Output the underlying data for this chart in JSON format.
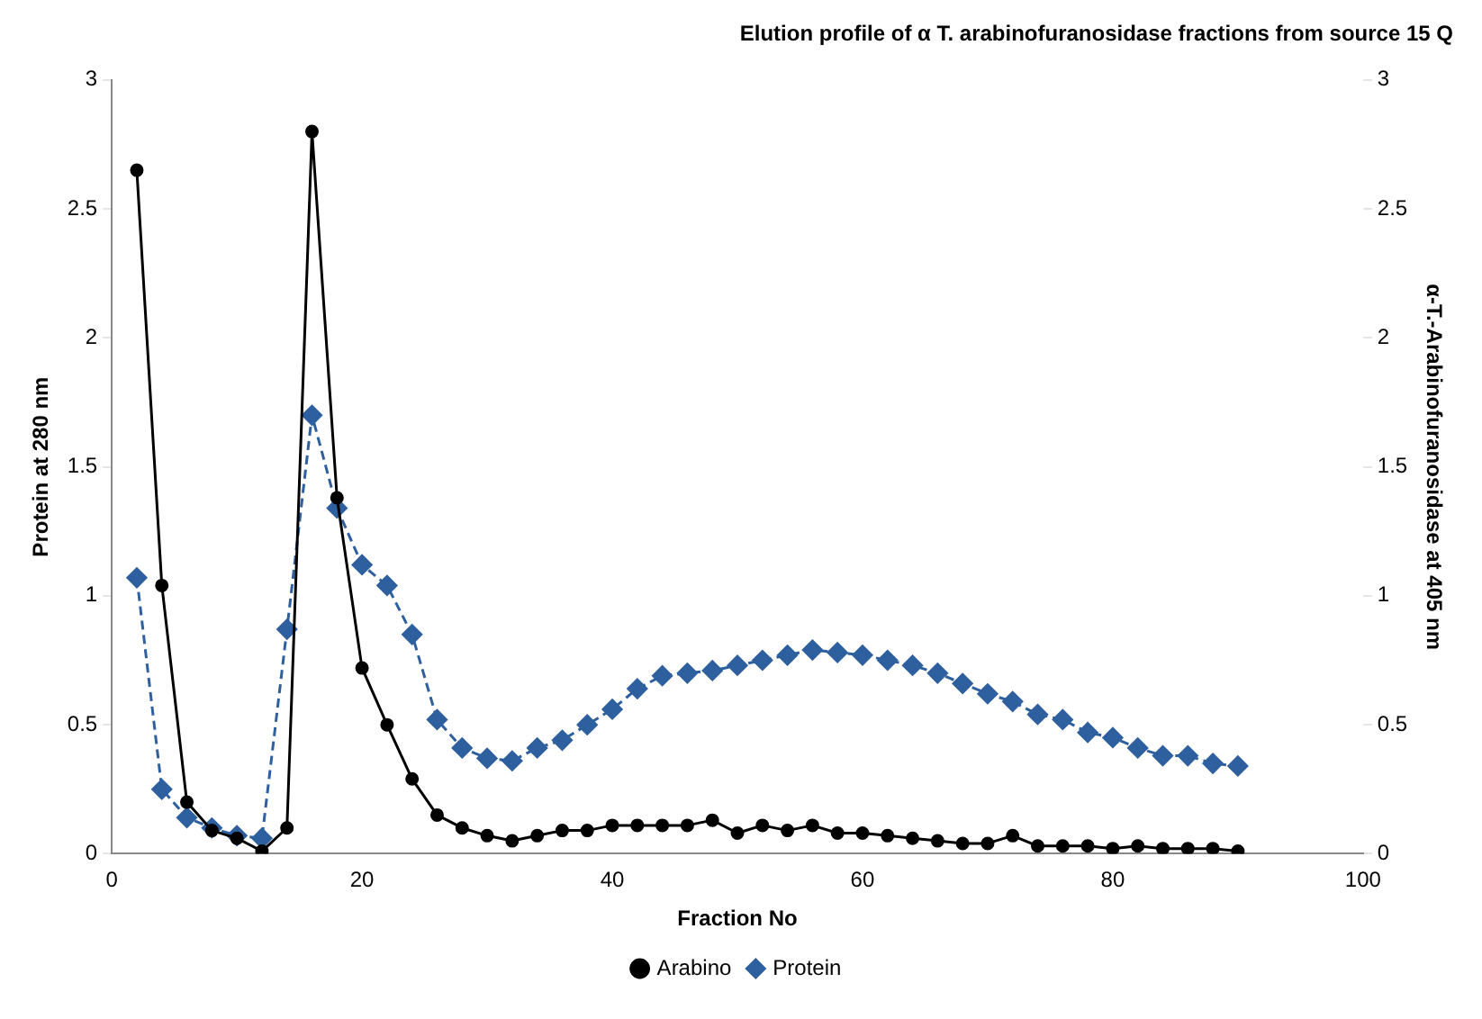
{
  "chart_data": {
    "type": "line",
    "title": "Elution profile of α T. arabinofuranosidase fractions from source 15 Q",
    "xlabel": "Fraction No",
    "ylabel": "Protein at 280 nm",
    "y2label": "α-T.-Arabinofuranosidase at 405 nm",
    "x": [
      2,
      4,
      6,
      8,
      10,
      12,
      14,
      16,
      18,
      20,
      22,
      24,
      26,
      28,
      30,
      32,
      34,
      36,
      38,
      40,
      42,
      44,
      46,
      48,
      50,
      52,
      54,
      56,
      58,
      60,
      62,
      64,
      66,
      68,
      70,
      72,
      74,
      76,
      78,
      80,
      82,
      84,
      86,
      88,
      90
    ],
    "xlim": [
      0,
      100
    ],
    "xticks": [
      0,
      20,
      40,
      60,
      80,
      100
    ],
    "ylim": [
      0,
      3
    ],
    "yticks": [
      0,
      0.5,
      1,
      1.5,
      2,
      2.5,
      3
    ],
    "y2lim": [
      0,
      3
    ],
    "y2ticks": [
      0,
      0.5,
      1,
      1.5,
      2,
      2.5,
      3
    ],
    "grid": false,
    "legend": "bottom",
    "series": [
      {
        "name": "Protein",
        "color": "#2e5f9e",
        "marker": "diamond",
        "line_style": "dashed",
        "values": [
          1.07,
          0.25,
          0.14,
          0.1,
          0.07,
          0.06,
          0.87,
          1.7,
          1.34,
          1.12,
          1.04,
          0.85,
          0.52,
          0.41,
          0.37,
          0.36,
          0.41,
          0.44,
          0.5,
          0.56,
          0.64,
          0.69,
          0.7,
          0.71,
          0.73,
          0.75,
          0.77,
          0.79,
          0.78,
          0.77,
          0.75,
          0.73,
          0.7,
          0.66,
          0.62,
          0.59,
          0.54,
          0.52,
          0.47,
          0.45,
          0.41,
          0.38,
          0.38,
          0.35,
          0.34
        ]
      },
      {
        "name": "Arabino",
        "color": "#000000",
        "marker": "circle",
        "line_style": "solid",
        "axis": "y2",
        "values": [
          2.65,
          1.04,
          0.2,
          0.09,
          0.06,
          0.01,
          0.1,
          2.8,
          1.38,
          0.72,
          0.5,
          0.29,
          0.15,
          0.1,
          0.07,
          0.05,
          0.07,
          0.09,
          0.09,
          0.11,
          0.11,
          0.11,
          0.11,
          0.13,
          0.08,
          0.11,
          0.09,
          0.11,
          0.08,
          0.08,
          0.07,
          0.06,
          0.05,
          0.04,
          0.04,
          0.07,
          0.03,
          0.03,
          0.03,
          0.02,
          0.03,
          0.02,
          0.02,
          0.02,
          0.01
        ]
      }
    ]
  }
}
